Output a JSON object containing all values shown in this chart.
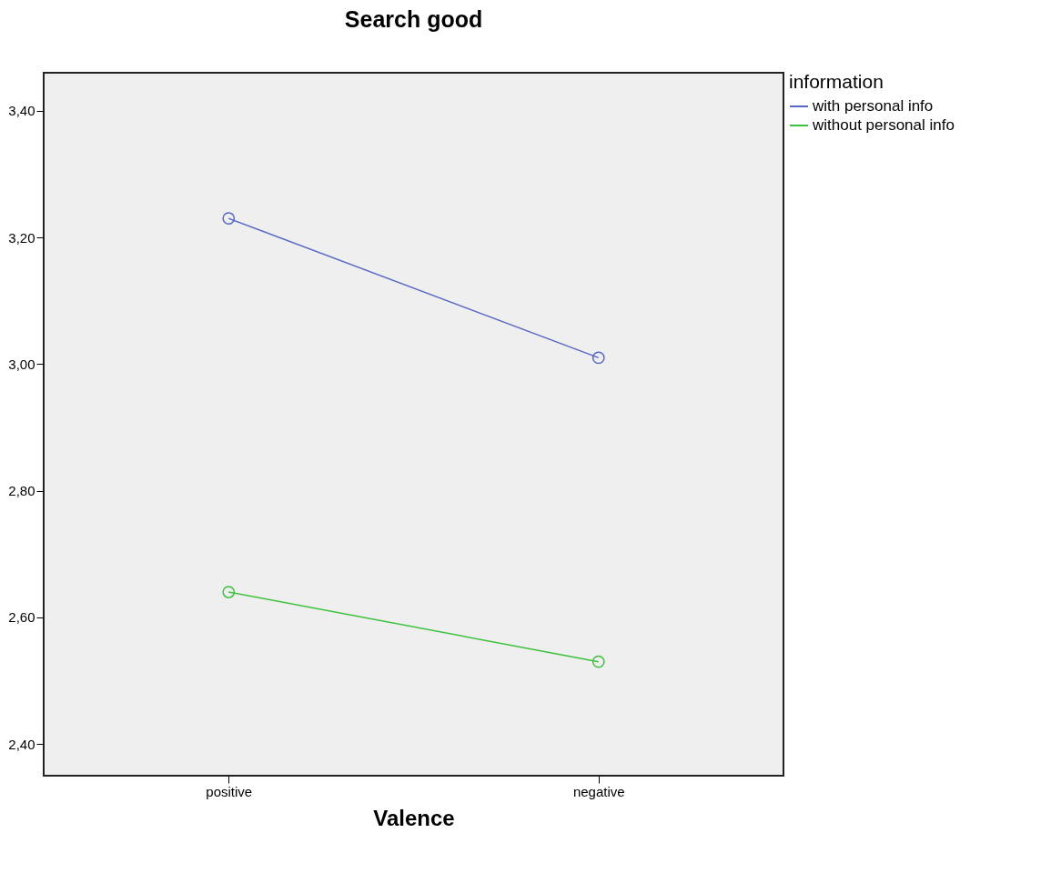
{
  "chart_data": {
    "type": "line",
    "title": "Search good",
    "xlabel": "Valence",
    "legend_title": "information",
    "categories": [
      "positive",
      "negative"
    ],
    "series": [
      {
        "name": "with personal info",
        "color": "#5566c4",
        "values": [
          3.23,
          3.01
        ]
      },
      {
        "name": "without personal info",
        "color": "#3cc13c",
        "values": [
          2.64,
          2.53
        ]
      }
    ],
    "ylim": [
      2.35,
      3.46
    ],
    "yticks": [
      {
        "value": 2.4,
        "label": "2,40"
      },
      {
        "value": 2.6,
        "label": "2,60"
      },
      {
        "value": 2.8,
        "label": "2,80"
      },
      {
        "value": 3.0,
        "label": "3,00"
      },
      {
        "value": 3.2,
        "label": "3,20"
      },
      {
        "value": 3.4,
        "label": "3,40"
      }
    ],
    "grid": false,
    "legend": "top right",
    "marker": "circle",
    "line_style": "solid"
  }
}
